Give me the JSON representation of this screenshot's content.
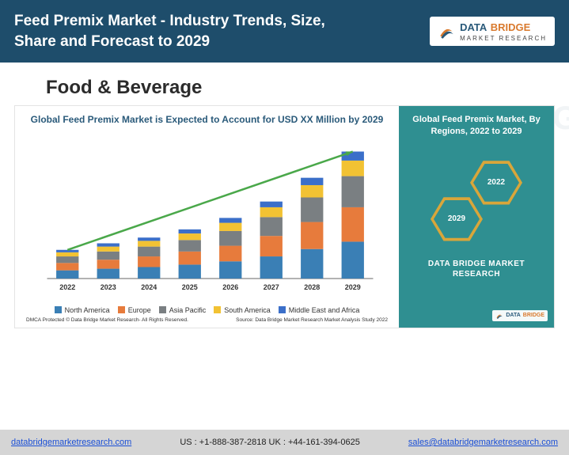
{
  "header": {
    "title": "Feed Premix Market - Industry Trends, Size, Share and Forecast to 2029",
    "logo": {
      "text1": "DATA",
      "text2": "BRIDGE",
      "sub": "MARKET RESEARCH"
    }
  },
  "section_title": "Food & Beverage",
  "chart": {
    "type": "stacked_bar_with_trend",
    "title": "Global Feed Premix Market is Expected to Account for USD XX Million by 2029",
    "x_categories": [
      "2022",
      "2023",
      "2024",
      "2025",
      "2026",
      "2027",
      "2028",
      "2029"
    ],
    "series": [
      {
        "name": "North America",
        "color": "#3a7fb5",
        "values": [
          10,
          12,
          14,
          17,
          21,
          27,
          36,
          45
        ]
      },
      {
        "name": "Europe",
        "color": "#e77b3c",
        "values": [
          9,
          11,
          13,
          16,
          19,
          25,
          33,
          42
        ]
      },
      {
        "name": "Asia Pacific",
        "color": "#7a7f82",
        "values": [
          8,
          10,
          12,
          14,
          18,
          23,
          30,
          38
        ]
      },
      {
        "name": "South America",
        "color": "#f2c233",
        "values": [
          5,
          6,
          7,
          8,
          10,
          12,
          15,
          19
        ]
      },
      {
        "name": "Middle East and Africa",
        "color": "#3b6fc9",
        "values": [
          3,
          4,
          4,
          5,
          6,
          7,
          9,
          11
        ]
      }
    ],
    "trend_line": {
      "color": "#4aa84a",
      "start_total": 35,
      "end_total": 155
    },
    "background_color": "#ffffff",
    "axis_color": "#666666",
    "xlabel_fontsize": 9,
    "y_max": 170,
    "bar_width": 0.55,
    "dmca_text": "DMCA Protected © Data Bridge Market Research- All Rights Reserved.",
    "source_text": "Source: Data Bridge Market Research Market Analysis Study 2022"
  },
  "right_panel": {
    "title": "Global Feed Premix Market, By Regions, 2022 to 2029",
    "hex_a": "2022",
    "hex_b": "2029",
    "brand": "DATA BRIDGE MARKET RESEARCH",
    "bg_color": "#2f8f91",
    "hex_accent": "#d9a63a"
  },
  "footer": {
    "link1": "databridgemarketresearch.com",
    "phones": "US : +1-888-387-2818  UK : +44-161-394-0625",
    "link2": "sales@databridgemarketresearch.com"
  },
  "watermark": "DATA BRIDGE"
}
